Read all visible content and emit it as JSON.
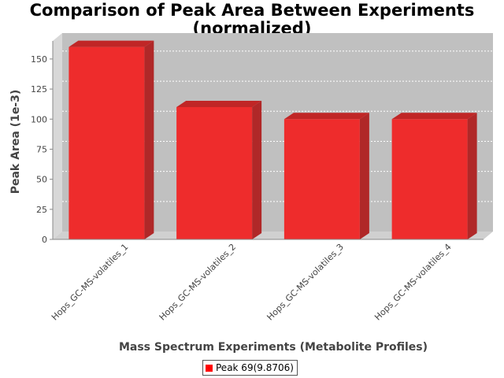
{
  "chart_data": {
    "type": "bar",
    "title": "Comparison of Peak Area Between Experiments",
    "subtitle": "(normalized)",
    "xlabel": "Mass Spectrum Experiments (Metabolite Profiles)",
    "ylabel": "Peak Area (1e-3)",
    "categories": [
      "Hops_GC-MS-volatiles_1",
      "Hops_GC-MS-volatiles_2",
      "Hops_GC-MS-volatiles_3",
      "Hops_GC-MS-volatiles_4"
    ],
    "series": [
      {
        "name": "Peak 69(9.8706)",
        "values": [
          160,
          110,
          100,
          100
        ]
      }
    ],
    "ylim": [
      0,
      165
    ],
    "yticks": [
      0,
      25,
      50,
      75,
      100,
      125,
      150
    ],
    "grid": true,
    "legend": "bottom-center",
    "colors": {
      "bar": "#ff0000",
      "plot_background": "#c0c0c0"
    }
  }
}
